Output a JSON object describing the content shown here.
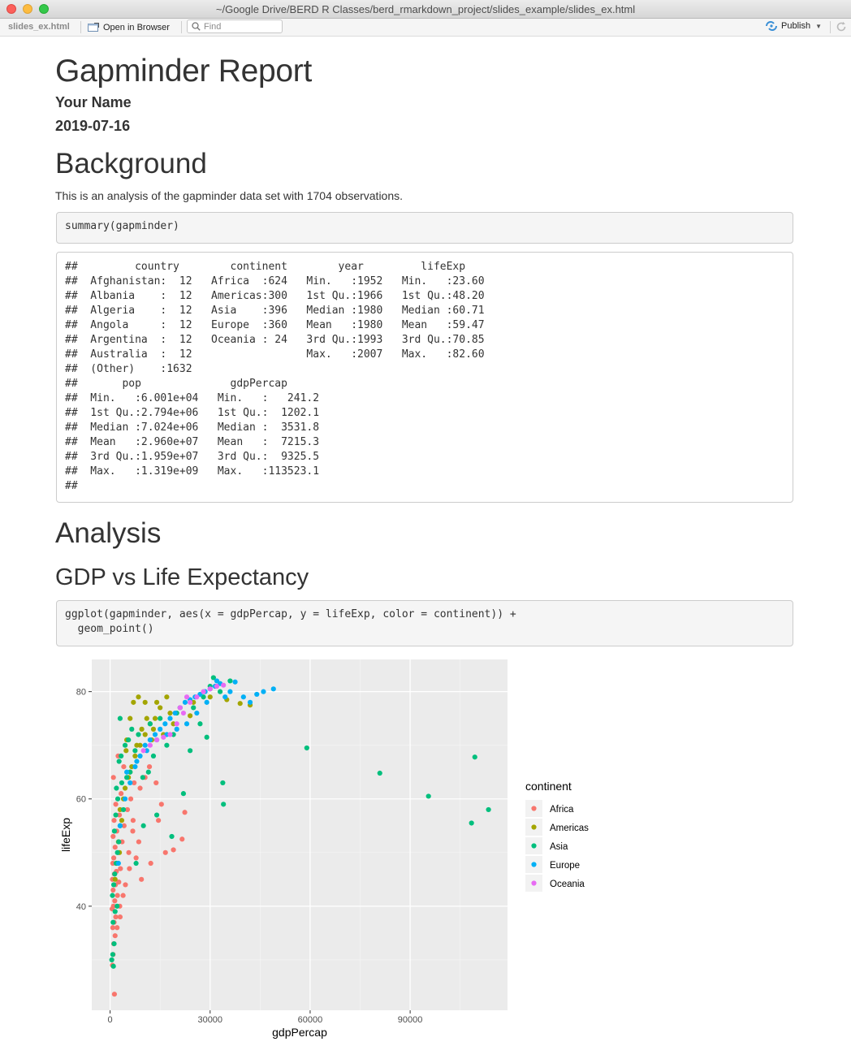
{
  "window": {
    "title": "~/Google Drive/BERD R Classes/berd_rmarkdown_project/slides_example/slides_ex.html"
  },
  "toolbar": {
    "file_tab": "slides_ex.html",
    "open_in_browser": "Open in Browser",
    "find_placeholder": "Find",
    "publish": "Publish"
  },
  "doc": {
    "title": "Gapminder Report",
    "author": "Your Name",
    "date": "2019-07-16",
    "sections": {
      "background": "Background",
      "background_text": "This is an analysis of the gapminder data set with 1704 observations.",
      "analysis": "Analysis",
      "gdp_vs_life": "GDP vs Life Expectancy"
    },
    "code1": "summary(gapminder)",
    "output1": [
      "##         country        continent        year         lifeExp     ",
      "##  Afghanistan:  12   Africa  :624   Min.   :1952   Min.   :23.60  ",
      "##  Albania    :  12   Americas:300   1st Qu.:1966   1st Qu.:48.20  ",
      "##  Algeria    :  12   Asia    :396   Median :1980   Median :60.71  ",
      "##  Angola     :  12   Europe  :360   Mean   :1980   Mean   :59.47  ",
      "##  Argentina  :  12   Oceania : 24   3rd Qu.:1993   3rd Qu.:70.85  ",
      "##  Australia  :  12                  Max.   :2007   Max.   :82.60  ",
      "##  (Other)    :1632                                                ",
      "##       pop              gdpPercap       ",
      "##  Min.   :6.001e+04   Min.   :   241.2  ",
      "##  1st Qu.:2.794e+06   1st Qu.:  1202.1  ",
      "##  Median :7.024e+06   Median :  3531.8  ",
      "##  Mean   :2.960e+07   Mean   :  7215.3  ",
      "##  3rd Qu.:1.959e+07   3rd Qu.:  9325.5  ",
      "##  Max.   :1.319e+09   Max.   :113523.1  ",
      "## "
    ],
    "code2": "ggplot(gapminder, aes(x = gdpPercap, y = lifeExp, color = continent)) +\n  geom_point()"
  },
  "chart_data": {
    "type": "scatter",
    "xlabel": "gdpPercap",
    "ylabel": "lifeExp",
    "xlim": [
      -5500,
      119200
    ],
    "ylim": [
      20.6,
      86.0
    ],
    "xticks": [
      0,
      30000,
      60000,
      90000
    ],
    "yticks": [
      40,
      60,
      80
    ],
    "grid": true,
    "legend_title": "continent",
    "legend_position": "right",
    "series": [
      {
        "name": "Africa",
        "color": "#F8766D",
        "points": [
          [
            1300,
            23.6
          ],
          [
            700,
            29
          ],
          [
            900,
            31
          ],
          [
            1100,
            33
          ],
          [
            1500,
            34.5
          ],
          [
            800,
            36
          ],
          [
            1200,
            37
          ],
          [
            1700,
            38
          ],
          [
            600,
            39.5
          ],
          [
            1000,
            40
          ],
          [
            1400,
            41
          ],
          [
            2200,
            42
          ],
          [
            900,
            43
          ],
          [
            1600,
            44
          ],
          [
            2600,
            44.5
          ],
          [
            700,
            45
          ],
          [
            1300,
            46
          ],
          [
            1900,
            46.5
          ],
          [
            3100,
            47
          ],
          [
            800,
            48
          ],
          [
            1100,
            49
          ],
          [
            2400,
            50
          ],
          [
            1500,
            51
          ],
          [
            3600,
            52
          ],
          [
            900,
            53
          ],
          [
            2000,
            54
          ],
          [
            4200,
            55
          ],
          [
            1200,
            56
          ],
          [
            2800,
            57
          ],
          [
            5200,
            58
          ],
          [
            1700,
            59
          ],
          [
            6200,
            60
          ],
          [
            3300,
            61
          ],
          [
            7200,
            63
          ],
          [
            1000,
            64
          ],
          [
            9000,
            62
          ],
          [
            10500,
            64
          ],
          [
            4100,
            66
          ],
          [
            2400,
            68
          ],
          [
            14500,
            56
          ],
          [
            22400,
            57.5
          ],
          [
            21600,
            52.5
          ],
          [
            7800,
            49
          ],
          [
            12200,
            48
          ],
          [
            5800,
            47
          ],
          [
            9400,
            45
          ],
          [
            8600,
            52
          ],
          [
            16600,
            50
          ],
          [
            19000,
            50.5
          ],
          [
            6800,
            54
          ],
          [
            11800,
            66
          ],
          [
            13800,
            63
          ],
          [
            15400,
            59
          ],
          [
            2900,
            40
          ],
          [
            3900,
            42
          ],
          [
            4600,
            44
          ],
          [
            2100,
            36
          ],
          [
            3000,
            38
          ],
          [
            5600,
            50
          ],
          [
            6900,
            56
          ]
        ]
      },
      {
        "name": "Americas",
        "color": "#A3A500",
        "points": [
          [
            3000,
            58
          ],
          [
            4500,
            62
          ],
          [
            6000,
            65
          ],
          [
            7500,
            68
          ],
          [
            9000,
            70
          ],
          [
            10500,
            72
          ],
          [
            12000,
            74
          ],
          [
            13500,
            75
          ],
          [
            15000,
            77
          ],
          [
            7000,
            78
          ],
          [
            8500,
            79
          ],
          [
            10500,
            78
          ],
          [
            18000,
            76
          ],
          [
            21000,
            77
          ],
          [
            25000,
            78
          ],
          [
            30000,
            79
          ],
          [
            35000,
            78.5
          ],
          [
            39000,
            77.8
          ],
          [
            42000,
            77.5
          ],
          [
            2500,
            52
          ],
          [
            3500,
            56
          ],
          [
            4000,
            60
          ],
          [
            5500,
            64
          ],
          [
            6500,
            66
          ],
          [
            8000,
            70
          ],
          [
            9500,
            73
          ],
          [
            11000,
            75
          ],
          [
            13000,
            73
          ],
          [
            5000,
            71
          ],
          [
            14000,
            78
          ],
          [
            2000,
            48
          ],
          [
            1500,
            45
          ],
          [
            2800,
            50
          ],
          [
            6000,
            75
          ],
          [
            16000,
            72
          ],
          [
            19000,
            74
          ],
          [
            24000,
            75.5
          ],
          [
            12500,
            71
          ],
          [
            17000,
            79
          ],
          [
            4800,
            69
          ]
        ]
      },
      {
        "name": "Asia",
        "color": "#00BF7D",
        "points": [
          [
            1000,
            28.8
          ],
          [
            800,
            31
          ],
          [
            1200,
            33
          ],
          [
            900,
            37
          ],
          [
            1500,
            39
          ],
          [
            700,
            42
          ],
          [
            1100,
            44
          ],
          [
            1400,
            46
          ],
          [
            1800,
            48
          ],
          [
            2200,
            50
          ],
          [
            2600,
            52
          ],
          [
            1300,
            54
          ],
          [
            3000,
            55
          ],
          [
            1700,
            57
          ],
          [
            4000,
            58
          ],
          [
            2300,
            60
          ],
          [
            1900,
            62
          ],
          [
            3500,
            63
          ],
          [
            5000,
            64
          ],
          [
            6000,
            65
          ],
          [
            2700,
            67
          ],
          [
            3300,
            68
          ],
          [
            7500,
            69
          ],
          [
            4500,
            70
          ],
          [
            5500,
            71
          ],
          [
            8500,
            72
          ],
          [
            6500,
            73
          ],
          [
            12000,
            74
          ],
          [
            15000,
            75
          ],
          [
            20000,
            76
          ],
          [
            25000,
            77
          ],
          [
            28000,
            79
          ],
          [
            30000,
            81
          ],
          [
            31000,
            82.6
          ],
          [
            33000,
            80
          ],
          [
            36000,
            82
          ],
          [
            27000,
            74
          ],
          [
            29000,
            71.5
          ],
          [
            24000,
            69
          ],
          [
            33800,
            63
          ],
          [
            34000,
            59
          ],
          [
            59000,
            69.5
          ],
          [
            80900,
            64.8
          ],
          [
            95500,
            60.5
          ],
          [
            108400,
            55.5
          ],
          [
            109400,
            67.8
          ],
          [
            113500,
            58
          ],
          [
            3000,
            75
          ],
          [
            9800,
            64
          ],
          [
            11500,
            65
          ],
          [
            13000,
            68
          ],
          [
            17000,
            70
          ],
          [
            19000,
            72
          ],
          [
            10000,
            55
          ],
          [
            14000,
            57
          ],
          [
            18500,
            53
          ],
          [
            22000,
            61
          ],
          [
            7800,
            48
          ],
          [
            500,
            30
          ],
          [
            2100,
            40
          ]
        ]
      },
      {
        "name": "Europe",
        "color": "#00B0F6",
        "points": [
          [
            3000,
            55
          ],
          [
            4500,
            60
          ],
          [
            6000,
            63
          ],
          [
            7500,
            66
          ],
          [
            9000,
            68
          ],
          [
            10500,
            70
          ],
          [
            12000,
            71
          ],
          [
            13500,
            72
          ],
          [
            15000,
            73
          ],
          [
            16500,
            74
          ],
          [
            18000,
            75
          ],
          [
            19500,
            76
          ],
          [
            21000,
            77
          ],
          [
            22500,
            78
          ],
          [
            24000,
            78.5
          ],
          [
            25500,
            79
          ],
          [
            27000,
            79.5
          ],
          [
            28500,
            80
          ],
          [
            30000,
            80.5
          ],
          [
            31500,
            81
          ],
          [
            33000,
            81.5
          ],
          [
            34500,
            79
          ],
          [
            36000,
            80
          ],
          [
            37500,
            81.8
          ],
          [
            40000,
            79
          ],
          [
            42000,
            78
          ],
          [
            44000,
            79.5
          ],
          [
            46000,
            80
          ],
          [
            49000,
            80.5
          ],
          [
            2500,
            48
          ],
          [
            5000,
            65
          ],
          [
            8000,
            67
          ],
          [
            11000,
            69
          ],
          [
            14000,
            71
          ],
          [
            17000,
            72
          ],
          [
            20000,
            73
          ],
          [
            23000,
            74
          ],
          [
            26000,
            76
          ],
          [
            29000,
            78
          ],
          [
            32000,
            82
          ]
        ]
      },
      {
        "name": "Oceania",
        "color": "#E76BF3",
        "points": [
          [
            10000,
            69
          ],
          [
            12000,
            70
          ],
          [
            14000,
            71
          ],
          [
            16000,
            71.5
          ],
          [
            18000,
            72
          ],
          [
            20000,
            74
          ],
          [
            22000,
            76
          ],
          [
            24000,
            78
          ],
          [
            26000,
            79
          ],
          [
            28000,
            80
          ],
          [
            30000,
            80.5
          ],
          [
            32000,
            81
          ],
          [
            34000,
            81.2
          ],
          [
            23000,
            79
          ],
          [
            21000,
            77
          ]
        ]
      }
    ]
  }
}
